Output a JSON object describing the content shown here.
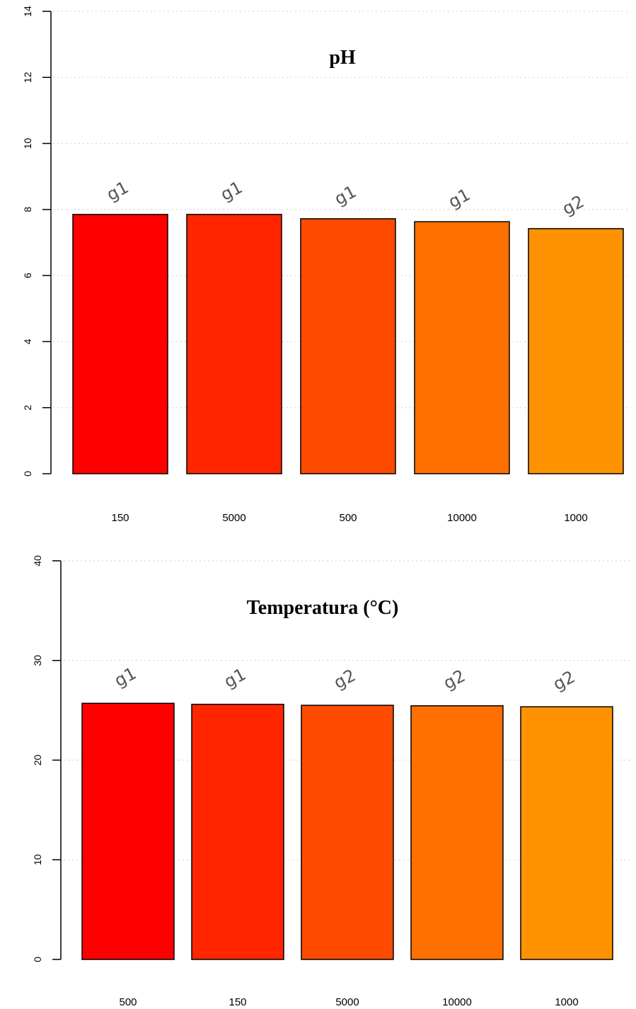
{
  "chart_data": [
    {
      "type": "bar",
      "title": "pH",
      "xlabel": "",
      "ylabel": "",
      "ylim": [
        0,
        14
      ],
      "yticks": [
        0,
        2,
        4,
        6,
        8,
        10,
        12,
        14
      ],
      "grid": "horizontal-dotted",
      "categories": [
        "150",
        "5000",
        "500",
        "10000",
        "1000"
      ],
      "values": [
        7.85,
        7.85,
        7.72,
        7.63,
        7.42
      ],
      "bar_labels": [
        "g1",
        "g1",
        "g1",
        "g1",
        "g2"
      ],
      "colors": [
        "#ff0000",
        "#ff2600",
        "#ff4b00",
        "#ff7000",
        "#ff9200"
      ]
    },
    {
      "type": "bar",
      "title": "Temperatura (°C)",
      "xlabel": "",
      "ylabel": "",
      "ylim": [
        0,
        40
      ],
      "yticks": [
        0,
        10,
        20,
        30,
        40
      ],
      "grid": "horizontal-dotted",
      "categories": [
        "500",
        "150",
        "5000",
        "10000",
        "1000"
      ],
      "values": [
        25.7,
        25.6,
        25.5,
        25.45,
        25.35
      ],
      "bar_labels": [
        "g1",
        "g1",
        "g2",
        "g2",
        "g2"
      ],
      "colors": [
        "#ff0000",
        "#ff2600",
        "#ff4b00",
        "#ff7000",
        "#ff9200"
      ]
    }
  ]
}
